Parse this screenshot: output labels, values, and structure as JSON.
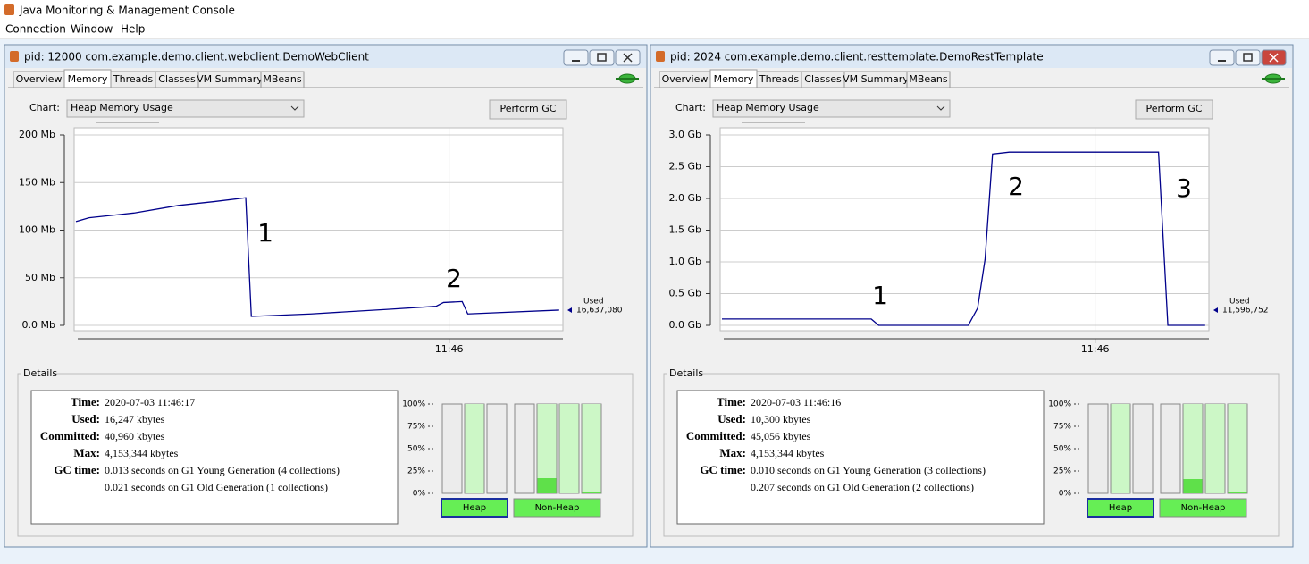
{
  "app_title": "Java Monitoring & Management Console",
  "menu": [
    "Connection",
    "Window",
    "Help"
  ],
  "windows": [
    {
      "title": "pid: 12000 com.example.demo.client.webclient.DemoWebClient",
      "tabs": [
        "Overview",
        "Memory",
        "Threads",
        "Classes",
        "VM Summary",
        "MBeans"
      ],
      "active_tab": 1,
      "chart_label": "Chart:",
      "chart_select": "Heap Memory Usage",
      "gc_button": "Perform GC",
      "chart": {
        "type": "line",
        "x": [
          44.0,
          44.07,
          44.31,
          44.55,
          44.74,
          44.91,
          44.94,
          45.26,
          45.69,
          45.93,
          45.97,
          46.07,
          46.1,
          46.59
        ],
        "xlim": [
          44,
          46.61
        ],
        "xticks": [
          {
            "value": 46,
            "label": "11:46"
          }
        ],
        "ylim": [
          0,
          200
        ],
        "yticks": [
          {
            "value": 0,
            "label": "0.0 Mb"
          },
          {
            "value": 50,
            "label": "50 Mb"
          },
          {
            "value": 100,
            "label": "100 Mb"
          },
          {
            "value": 150,
            "label": "150 Mb"
          },
          {
            "value": 200,
            "label": "200 Mb"
          }
        ],
        "grid": true,
        "series": [
          {
            "name": "Used",
            "color": "#00008b",
            "values": [
              109,
              113,
              118,
              126,
              130,
              134,
              9.4,
              12,
              17,
              20,
              24,
              25,
              12,
              16
            ],
            "current": "16,637,080"
          }
        ],
        "annotations": [
          "1",
          "2"
        ],
        "annotation_color": "#e8202a"
      },
      "details": {
        "title": "Details",
        "rows": [
          {
            "label": "Time:",
            "value": "2020-07-03 11:46:17"
          },
          {
            "label": "Used:",
            "value": "16,247 kbytes"
          },
          {
            "label": "Committed:",
            "value": "40,960 kbytes"
          },
          {
            "label": "Max:",
            "value": "4,153,344 kbytes"
          },
          {
            "label": "GC time:",
            "value": "0.013 seconds on G1 Young Generation (4 collections)"
          }
        ],
        "extra": "0.021 seconds on G1 Old Generation (1 collections)"
      },
      "pools": {
        "yticks": [
          {
            "value": 0,
            "label": "0%"
          },
          {
            "value": 25,
            "label": "25%"
          },
          {
            "value": 50,
            "label": "50%"
          },
          {
            "value": 75,
            "label": "75%"
          },
          {
            "value": 100,
            "label": "100%"
          }
        ],
        "groups": [
          {
            "name": "Heap",
            "committed": [
              0,
              100,
              0
            ],
            "used": [
              0,
              0,
              0
            ]
          },
          {
            "name": "Non-Heap",
            "committed": [
              0,
              100,
              100,
              100
            ],
            "used": [
              0,
              17,
              0,
              2
            ]
          }
        ]
      }
    },
    {
      "title": "pid: 2024 com.example.demo.client.resttemplate.DemoRestTemplate",
      "tabs": [
        "Overview",
        "Memory",
        "Threads",
        "Classes",
        "VM Summary",
        "MBeans"
      ],
      "active_tab": 1,
      "chart_label": "Chart:",
      "chart_select": "Heap Memory Usage",
      "gc_button": "Perform GC",
      "chart": {
        "type": "line",
        "x": [
          44.0,
          44.8,
          44.84,
          45.32,
          45.37,
          45.41,
          45.45,
          45.54,
          46.34,
          46.39,
          46.59
        ],
        "xlim": [
          44,
          46.61
        ],
        "xticks": [
          {
            "value": 46,
            "label": "11:46"
          }
        ],
        "ylim": [
          0,
          3
        ],
        "yticks": [
          {
            "value": 0,
            "label": "0.0 Gb"
          },
          {
            "value": 0.5,
            "label": "0.5 Gb"
          },
          {
            "value": 1,
            "label": "1.0 Gb"
          },
          {
            "value": 1.5,
            "label": "1.5 Gb"
          },
          {
            "value": 2,
            "label": "2.0 Gb"
          },
          {
            "value": 2.5,
            "label": "2.5 Gb"
          },
          {
            "value": 3,
            "label": "3.0 Gb"
          }
        ],
        "grid": true,
        "series": [
          {
            "name": "Used",
            "color": "#00008b",
            "values": [
              0.1,
              0.1,
              0,
              0,
              0.27,
              1.04,
              2.7,
              2.73,
              2.73,
              0,
              0
            ],
            "current": "11,596,752"
          }
        ],
        "annotations": [
          "1",
          "2",
          "3"
        ],
        "annotation_color": "#e8202a"
      },
      "details": {
        "title": "Details",
        "rows": [
          {
            "label": "Time:",
            "value": "2020-07-03 11:46:16"
          },
          {
            "label": "Used:",
            "value": "10,300 kbytes"
          },
          {
            "label": "Committed:",
            "value": "45,056 kbytes"
          },
          {
            "label": "Max:",
            "value": "4,153,344 kbytes"
          },
          {
            "label": "GC time:",
            "value": "0.010 seconds on G1 Young Generation (3 collections)"
          }
        ],
        "extra": "0.207 seconds on G1 Old Generation (2 collections)"
      },
      "pools": {
        "yticks": [
          {
            "value": 0,
            "label": "0%"
          },
          {
            "value": 25,
            "label": "25%"
          },
          {
            "value": 50,
            "label": "50%"
          },
          {
            "value": 75,
            "label": "75%"
          },
          {
            "value": 100,
            "label": "100%"
          }
        ],
        "groups": [
          {
            "name": "Heap",
            "committed": [
              0,
              100,
              0
            ],
            "used": [
              0,
              0,
              0
            ]
          },
          {
            "name": "Non-Heap",
            "committed": [
              0,
              100,
              100,
              100
            ],
            "used": [
              0,
              16,
              0,
              2
            ]
          }
        ]
      }
    }
  ]
}
